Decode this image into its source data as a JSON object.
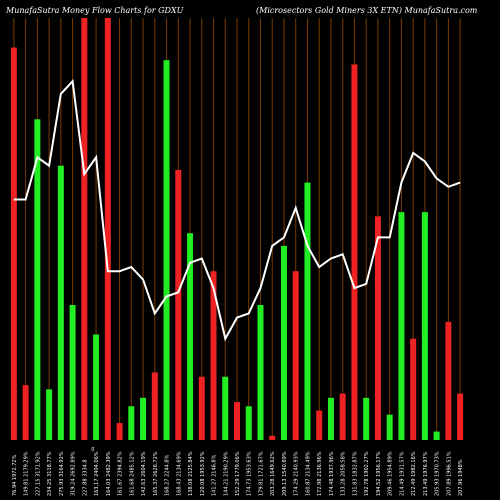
{
  "header": {
    "left": "MunafaSutra  Money Flow  Charts for GDXU",
    "right": "(Microsectors Gold Miners 3X   ETN) MunafaSutra.com"
  },
  "colors": {
    "background": "#000000",
    "up_bar": "#22ee22",
    "down_bar": "#ee2222",
    "grid_line": "#7a3a00",
    "price_line": "#ffffff",
    "axis_text": "#ffffff"
  },
  "chart_data": {
    "type": "bar",
    "price_unit_label": "0",
    "categories": [
      "76.94 1972.72%",
      "149.81 2179.29%",
      "227.15 3171.92%",
      "234.25 3118.77%",
      "275.93 3164.92%",
      "319.24 2692.89%",
      "227.88 3334.8",
      "163.17 2404.06%",
      "164.03 2482.39%",
      "161.67 2394.82%",
      "161.68 2485.12%",
      "142.63 2604.19%",
      "165.37 2626.72%",
      "168.27 2244.8%",
      "168.43 2134.69%",
      "138.08 2125.84%",
      "120.08 1953.92%",
      "141.27 2146.8%",
      "144.21 2190.29%",
      "152.29 1779.06%",
      "174.73 1953.63%",
      "179.81 1721.67%",
      "203.28 1649.62%",
      "209.13 1540.89%",
      "174.29 2140.93%",
      "160.87 2134.49%",
      "172.98 2136.96%",
      "174.48 1937.96%",
      "133.28 2058.58%",
      "131.83 1832.87%",
      "192.78 1902.27%",
      "194.52 1956.17%",
      "209.46 1954.89%",
      "214.49 1931.57%",
      "212.49 1982.16%",
      "213.49 1976.97%",
      "205.93 1970.73%",
      "207.89 1996.51%",
      "207.96 1948%"
    ],
    "series": [
      {
        "direction": [
          "down",
          "down",
          "up",
          "up",
          "up",
          "up",
          "down",
          "up",
          "down",
          "down",
          "up",
          "up",
          "down",
          "up",
          "down",
          "up",
          "down",
          "down",
          "up",
          "down",
          "up",
          "up",
          "down",
          "up",
          "down",
          "up",
          "down",
          "up",
          "down",
          "down",
          "up",
          "down",
          "up",
          "up",
          "down",
          "up",
          "up",
          "down",
          "down"
        ],
        "values": [
          93,
          13,
          76,
          12,
          65,
          32,
          100,
          25,
          100,
          4,
          8,
          10,
          16,
          90,
          64,
          49,
          15,
          40,
          15,
          9,
          8,
          32,
          1,
          46,
          40,
          61,
          7,
          10,
          11,
          89,
          10,
          53,
          6,
          54,
          24,
          54,
          2,
          28,
          11
        ]
      }
    ],
    "price_line": [
      57,
      57,
      67,
      65,
      82,
      85,
      63,
      67,
      40,
      40,
      41,
      38,
      30,
      34,
      35,
      42,
      43,
      36,
      24,
      29,
      30,
      36,
      46,
      48,
      55,
      46,
      41,
      43,
      44,
      36,
      37,
      48,
      48,
      61,
      68,
      66,
      62,
      60,
      61
    ],
    "ylim": [
      0,
      100
    ]
  }
}
